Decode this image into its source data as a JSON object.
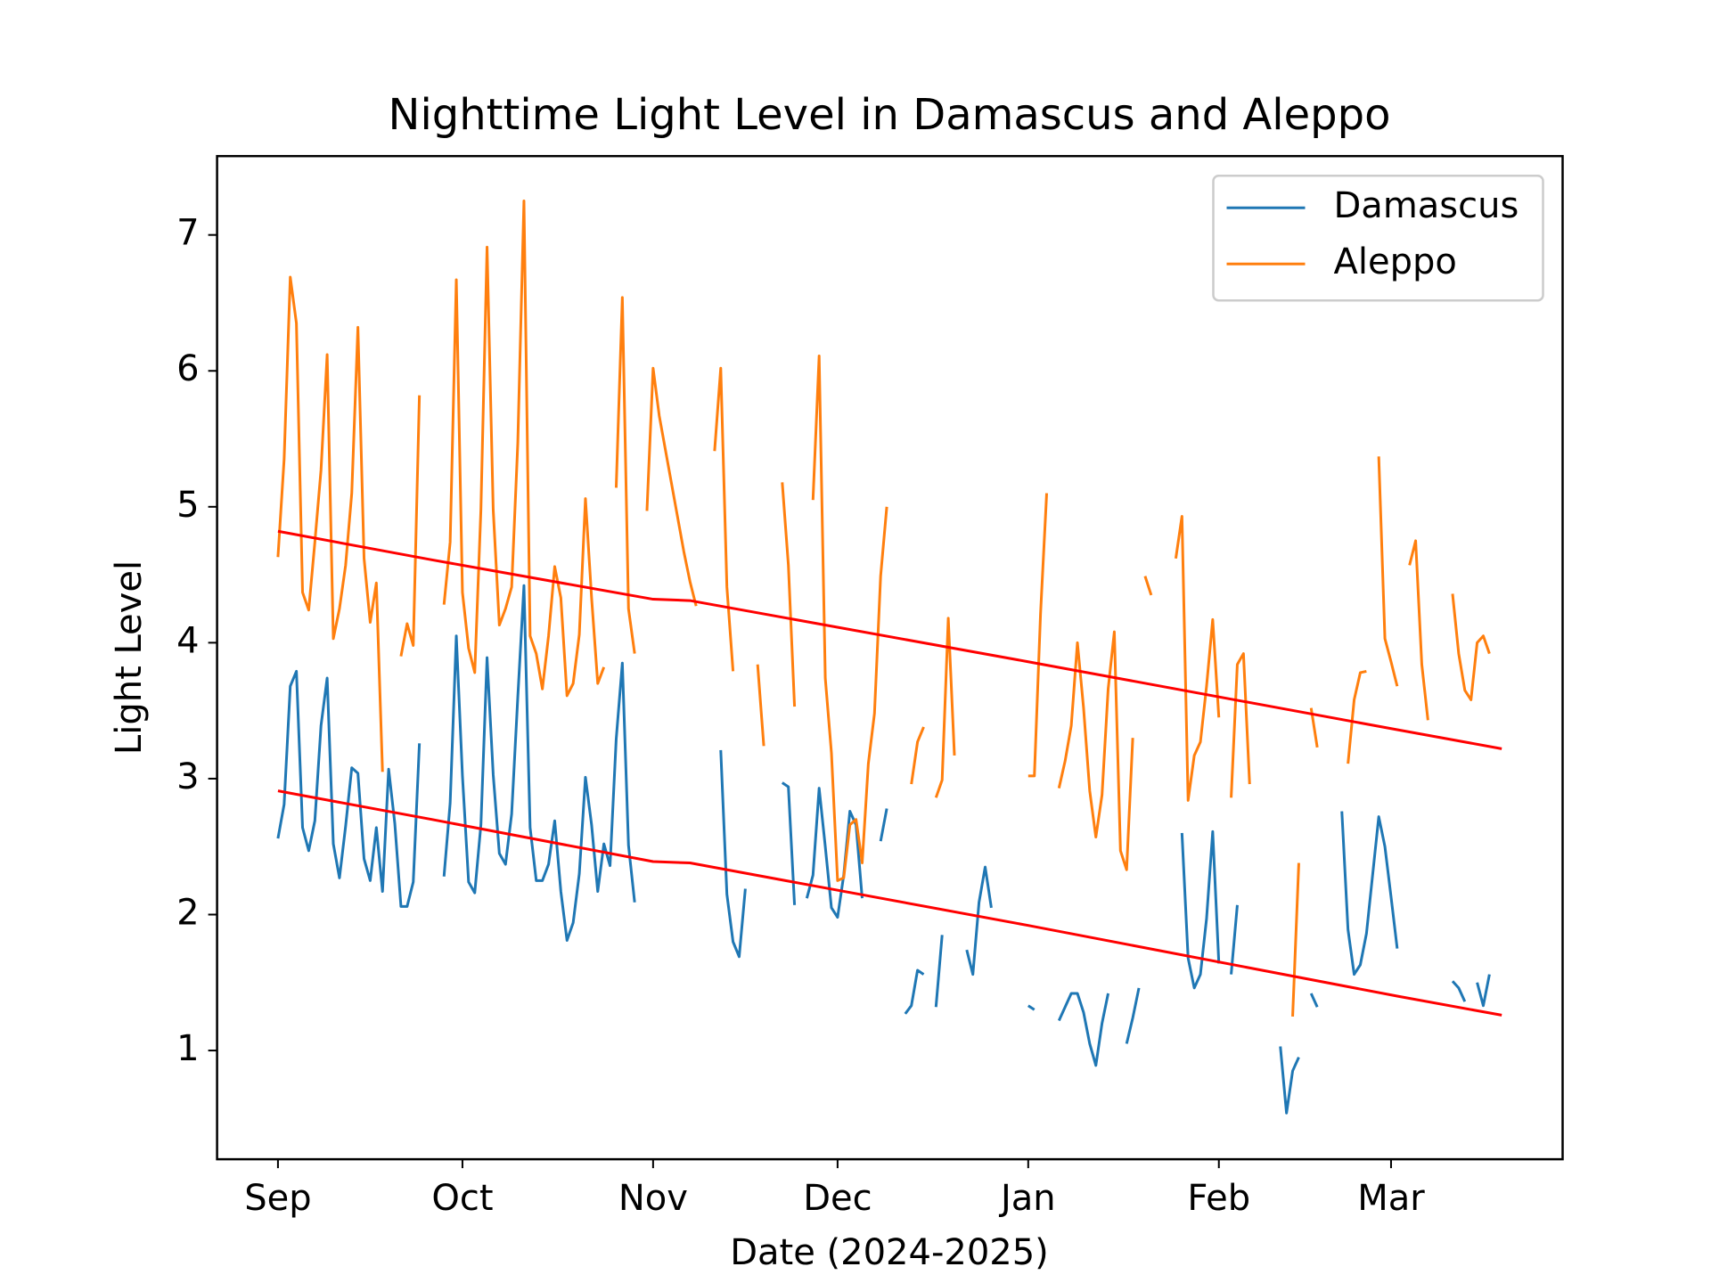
{
  "chart_data": {
    "type": "line",
    "title": "Nighttime Light Level in Damascus and Aleppo",
    "x_label": "Date (2024-2025)",
    "y_label": "Light Level",
    "x": [
      0,
      1,
      2,
      3,
      4,
      5,
      6,
      7,
      8,
      9,
      10,
      11,
      12,
      13,
      14,
      15,
      16,
      17,
      18,
      19,
      20,
      21,
      22,
      23,
      24,
      25,
      26,
      27,
      28,
      29,
      30,
      31,
      32,
      33,
      34,
      35,
      36,
      37,
      38,
      39,
      40,
      41,
      42,
      43,
      44,
      45,
      46,
      47,
      48,
      49,
      50,
      51,
      52,
      53,
      54,
      55,
      56,
      57,
      58,
      59,
      60,
      61,
      62,
      63,
      64,
      65,
      66,
      67,
      68,
      69,
      70,
      71,
      72,
      73,
      74,
      75,
      76,
      77,
      78,
      79,
      80,
      81,
      82,
      83,
      84,
      85,
      86,
      87,
      88,
      89,
      90,
      91,
      92,
      93,
      94,
      95,
      96,
      97,
      98,
      99,
      100,
      101,
      102,
      103,
      104,
      105,
      106,
      107,
      108,
      109,
      110,
      111,
      112,
      113,
      114,
      115,
      116,
      117,
      118,
      119,
      120,
      121,
      122,
      123,
      124,
      125,
      126,
      127,
      128,
      129,
      130,
      131,
      132,
      133,
      134,
      135,
      136,
      137,
      138,
      139,
      140,
      141,
      142,
      143,
      144,
      145,
      146,
      147,
      148,
      149,
      150,
      151,
      152,
      153,
      154,
      155,
      156,
      157,
      158,
      159,
      160,
      161,
      162,
      163,
      164,
      165,
      166,
      167,
      168,
      169,
      170,
      171,
      172,
      173,
      174,
      175,
      176,
      177,
      178,
      179,
      180,
      181,
      182,
      183,
      184,
      185,
      186,
      187,
      188,
      189,
      190,
      191,
      192,
      193,
      194,
      195,
      196,
      197
    ],
    "series": [
      {
        "name": "Damascus",
        "color": "#1f77b4",
        "values": [
          2.56,
          2.81,
          3.68,
          3.79,
          2.64,
          2.47,
          2.69,
          3.39,
          3.74,
          2.52,
          2.27,
          2.65,
          3.08,
          3.04,
          2.41,
          2.25,
          2.64,
          2.17,
          3.07,
          2.67,
          2.06,
          2.06,
          2.24,
          3.26,
          null,
          null,
          null,
          2.28,
          2.82,
          4.05,
          3.02,
          2.24,
          2.16,
          2.66,
          3.89,
          3.03,
          2.45,
          2.37,
          2.74,
          3.6,
          4.42,
          2.64,
          2.25,
          2.25,
          2.37,
          2.69,
          2.17,
          1.81,
          1.94,
          2.3,
          3.01,
          2.66,
          2.17,
          2.52,
          2.36,
          3.29,
          3.85,
          2.51,
          2.09,
          null,
          null,
          null,
          null,
          null,
          null,
          null,
          null,
          null,
          null,
          null,
          null,
          null,
          3.21,
          2.15,
          1.8,
          1.69,
          2.19,
          null,
          null,
          null,
          null,
          null,
          2.97,
          2.94,
          2.07,
          null,
          2.12,
          2.29,
          2.93,
          2.5,
          2.05,
          1.98,
          2.29,
          2.76,
          2.66,
          2.12,
          null,
          null,
          2.54,
          2.78,
          null,
          null,
          1.27,
          1.33,
          1.59,
          1.56,
          null,
          1.32,
          1.85,
          null,
          null,
          null,
          1.74,
          1.56,
          2.09,
          2.35,
          2.05,
          null,
          null,
          null,
          null,
          null,
          1.33,
          1.3,
          null,
          null,
          null,
          1.22,
          1.32,
          1.42,
          1.42,
          1.28,
          1.05,
          0.89,
          1.2,
          1.42,
          null,
          null,
          1.05,
          1.24,
          1.46,
          null,
          null,
          null,
          null,
          null,
          null,
          2.6,
          1.68,
          1.46,
          1.56,
          1.97,
          2.61,
          1.64,
          null,
          1.56,
          2.07,
          null,
          null,
          null,
          null,
          null,
          null,
          1.03,
          0.54,
          0.85,
          0.95,
          null,
          1.42,
          1.32,
          null,
          null,
          null,
          2.76,
          1.89,
          1.56,
          1.63,
          1.86,
          2.29,
          2.72,
          2.5,
          2.13,
          1.75,
          null,
          null,
          null,
          null,
          null,
          null,
          null,
          null,
          1.51,
          1.46,
          1.36,
          null,
          1.5,
          1.33,
          1.56
        ]
      },
      {
        "name": "Aleppo",
        "color": "#ff7f0e",
        "values": [
          4.63,
          5.35,
          6.69,
          6.35,
          4.37,
          4.24,
          4.74,
          5.27,
          6.12,
          4.03,
          4.25,
          4.57,
          5.1,
          6.32,
          4.62,
          4.15,
          4.44,
          3.05,
          null,
          null,
          3.9,
          4.14,
          3.98,
          5.82,
          null,
          null,
          null,
          4.28,
          4.74,
          6.67,
          4.37,
          3.96,
          3.78,
          4.98,
          6.91,
          4.98,
          4.13,
          4.25,
          4.41,
          5.47,
          7.25,
          4.05,
          3.92,
          3.66,
          4.05,
          4.56,
          4.33,
          3.61,
          3.7,
          4.06,
          5.06,
          4.33,
          3.7,
          3.82,
          null,
          5.14,
          6.54,
          4.25,
          3.92,
          null,
          4.97,
          6.02,
          5.67,
          5.42,
          5.17,
          4.92,
          4.67,
          4.45,
          4.27,
          null,
          null,
          5.41,
          6.02,
          4.41,
          3.79,
          null,
          null,
          null,
          3.84,
          3.24,
          null,
          null,
          5.18,
          4.57,
          3.53,
          null,
          null,
          5.05,
          6.11,
          3.74,
          3.19,
          2.25,
          2.27,
          2.66,
          2.7,
          2.38,
          3.11,
          3.48,
          4.49,
          5.0,
          null,
          null,
          null,
          2.96,
          3.27,
          3.38,
          null,
          2.86,
          2.99,
          4.18,
          3.17,
          null,
          null,
          null,
          null,
          null,
          null,
          null,
          null,
          null,
          null,
          null,
          3.02,
          3.02,
          4.21,
          5.1,
          null,
          2.93,
          3.13,
          3.39,
          4.0,
          3.52,
          2.91,
          2.57,
          2.88,
          3.66,
          4.08,
          2.47,
          2.33,
          3.3,
          null,
          4.49,
          4.35,
          null,
          null,
          null,
          4.62,
          4.93,
          2.84,
          3.17,
          3.27,
          3.68,
          4.17,
          3.45,
          null,
          2.86,
          3.84,
          3.92,
          2.96,
          null,
          null,
          null,
          null,
          null,
          null,
          1.25,
          2.38,
          null,
          3.52,
          3.23,
          null,
          null,
          null,
          null,
          3.11,
          3.58,
          3.78,
          3.79,
          null,
          5.37,
          4.03,
          3.86,
          3.68,
          null,
          4.57,
          4.75,
          3.84,
          3.43,
          null,
          null,
          null,
          4.36,
          3.92,
          3.65,
          3.58,
          4.0,
          4.05,
          3.92
        ]
      }
    ],
    "trend_lines": [
      {
        "color": "red",
        "x": [
          0,
          25,
          61,
          67,
          122,
          182,
          199
        ],
        "values": [
          2.91,
          2.7,
          2.39,
          2.38,
          1.92,
          1.4,
          1.26
        ]
      },
      {
        "color": "red",
        "x": [
          0,
          25,
          61,
          67,
          122,
          182,
          199
        ],
        "values": [
          4.82,
          4.61,
          4.32,
          4.31,
          3.86,
          3.36,
          3.22
        ]
      }
    ],
    "xlim": [
      -9.9,
      208.9
    ],
    "xticks": [
      {
        "value": 0,
        "label": "Sep"
      },
      {
        "value": 30,
        "label": "Oct"
      },
      {
        "value": 61,
        "label": "Nov"
      },
      {
        "value": 91,
        "label": "Dec"
      },
      {
        "value": 122,
        "label": "Jan"
      },
      {
        "value": 153,
        "label": "Feb"
      },
      {
        "value": 181,
        "label": "Mar"
      }
    ],
    "ylim": [
      0.2,
      7.58
    ],
    "yticks": [
      1,
      2,
      3,
      4,
      5,
      6,
      7
    ],
    "grid": false,
    "legend": "upper right"
  }
}
